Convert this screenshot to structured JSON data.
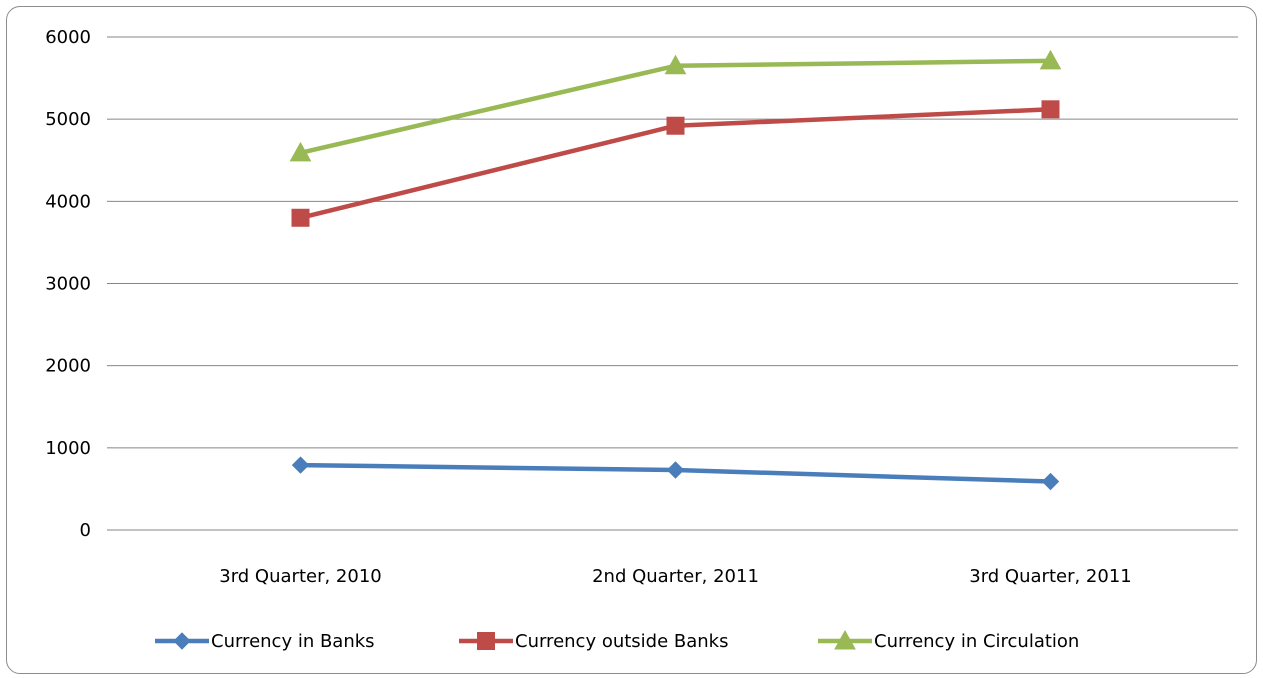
{
  "chart_data": {
    "type": "line",
    "title": "",
    "xlabel": "",
    "ylabel": "",
    "categories": [
      "3rd Quarter, 2010",
      "2nd Quarter, 2011",
      "3rd Quarter, 2011"
    ],
    "ylim": [
      0,
      6000
    ],
    "yticks": [
      0,
      1000,
      2000,
      3000,
      4000,
      5000,
      6000
    ],
    "grid": true,
    "legend_position": "bottom",
    "series": [
      {
        "name": "Currency in Banks",
        "values": [
          790,
          730,
          590
        ],
        "color": "#4a7ebb",
        "marker": "diamond"
      },
      {
        "name": "Currency outside Banks",
        "values": [
          3800,
          4920,
          5120
        ],
        "color": "#be4b48",
        "marker": "square"
      },
      {
        "name": "Currency in Circulation",
        "values": [
          4590,
          5650,
          5710
        ],
        "color": "#98b954",
        "marker": "triangle"
      }
    ]
  }
}
